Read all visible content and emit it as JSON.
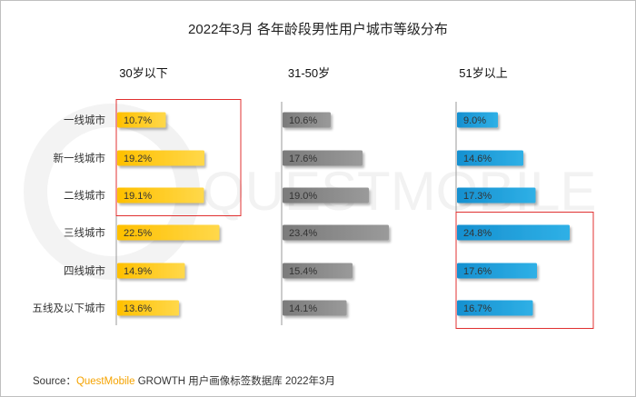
{
  "chart_data": {
    "type": "bar",
    "orientation": "horizontal",
    "title": "2022年3月 各年龄段男性用户城市等级分布",
    "categories": [
      "一线城市",
      "新一线城市",
      "二线城市",
      "三线城市",
      "四线城市",
      "五线及以下城市"
    ],
    "series": [
      {
        "name": "30岁以下",
        "color": "#ffc000",
        "values": [
          10.7,
          19.2,
          19.1,
          22.5,
          14.9,
          13.6
        ],
        "labels": [
          "10.7%",
          "19.2%",
          "19.1%",
          "22.5%",
          "14.9%",
          "13.6%"
        ]
      },
      {
        "name": "31-50岁",
        "color": "#808080",
        "values": [
          10.6,
          17.6,
          19.0,
          23.4,
          15.4,
          14.1
        ],
        "labels": [
          "10.6%",
          "17.6%",
          "19.0%",
          "23.4%",
          "15.4%",
          "14.1%"
        ]
      },
      {
        "name": "51岁以上",
        "color": "#1e9ad6",
        "values": [
          9.0,
          14.6,
          17.3,
          24.8,
          17.6,
          16.7
        ],
        "labels": [
          "9.0%",
          "14.6%",
          "17.3%",
          "24.8%",
          "17.6%",
          "16.7%"
        ]
      }
    ],
    "highlights": [
      {
        "series": 0,
        "categories": [
          "一线城市",
          "新一线城市",
          "二线城市"
        ],
        "color": "#e03030"
      },
      {
        "series": 2,
        "categories": [
          "三线城市",
          "四线城市",
          "五线及以下城市"
        ],
        "color": "#e03030"
      }
    ],
    "xlim": [
      0,
      30
    ]
  },
  "watermark": "QUESTMOBILE",
  "source": {
    "prefix": "Source：",
    "brand": "QuestMobile",
    "suffix": " GROWTH 用户画像标签数据库 2022年3月"
  }
}
